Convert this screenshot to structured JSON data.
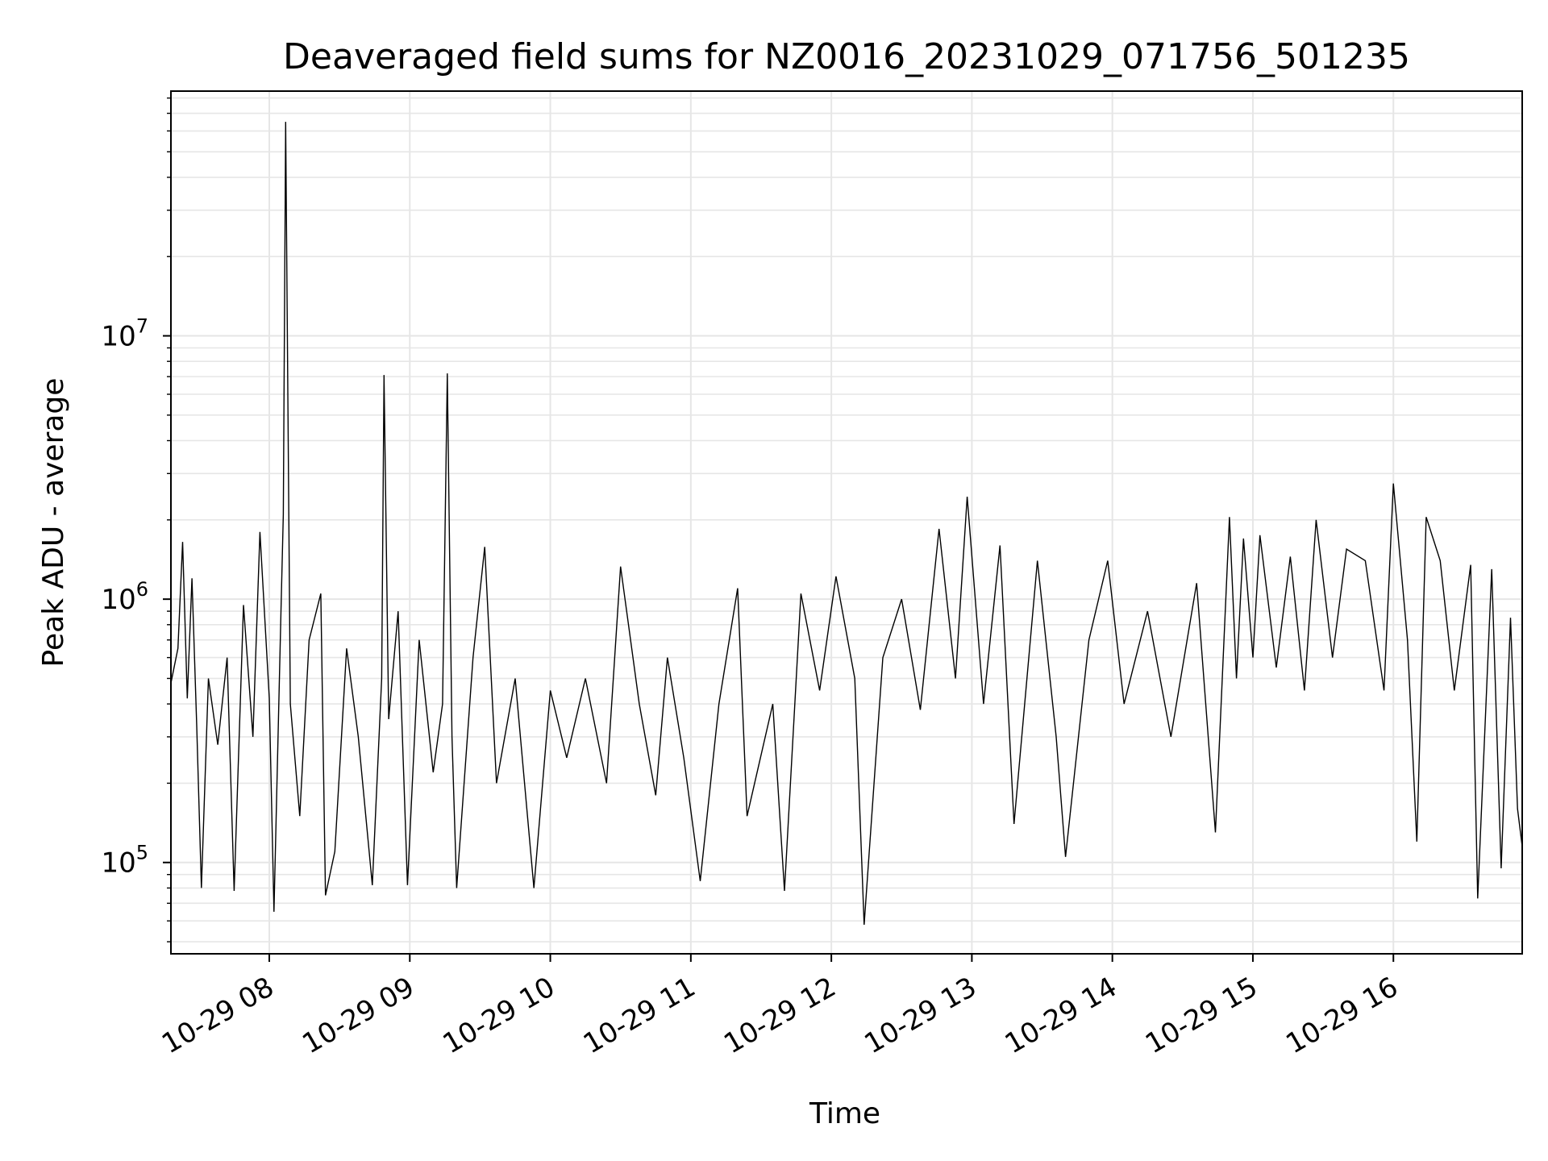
{
  "chart_data": {
    "type": "line",
    "title": "Deaveraged field sums for NZ0016_20231029_071756_501235",
    "xlabel": "Time",
    "ylabel": "Peak ADU - average",
    "yscale": "log",
    "xlim": [
      "2023-10-29 07:18",
      "2023-10-29 16:55"
    ],
    "ylim": [
      45000,
      85000000
    ],
    "x_ticks": [
      "2023-10-29 08:00",
      "2023-10-29 09:00",
      "2023-10-29 10:00",
      "2023-10-29 11:00",
      "2023-10-29 12:00",
      "2023-10-29 13:00",
      "2023-10-29 14:00",
      "2023-10-29 15:00",
      "2023-10-29 16:00"
    ],
    "x_tick_labels": [
      "10-29 08",
      "10-29 09",
      "10-29 10",
      "10-29 11",
      "10-29 12",
      "10-29 13",
      "10-29 14",
      "10-29 15",
      "10-29 16"
    ],
    "y_ticks": [
      100000,
      1000000,
      10000000
    ],
    "y_tick_labels": [
      {
        "base": "10",
        "exp": "5"
      },
      {
        "base": "10",
        "exp": "6"
      },
      {
        "base": "10",
        "exp": "7"
      }
    ],
    "grid": true,
    "line_color": "#000000",
    "grid_color": "#e6e6e6",
    "series": [
      {
        "values": [
          [
            "2023-10-29 07:18",
            480000
          ],
          [
            "2023-10-29 07:21",
            650000
          ],
          [
            "2023-10-29 07:23",
            1650000
          ],
          [
            "2023-10-29 07:25",
            420000
          ],
          [
            "2023-10-29 07:27",
            1200000
          ],
          [
            "2023-10-29 07:29",
            330000
          ],
          [
            "2023-10-29 07:31",
            80000
          ],
          [
            "2023-10-29 07:34",
            500000
          ],
          [
            "2023-10-29 07:38",
            280000
          ],
          [
            "2023-10-29 07:42",
            600000
          ],
          [
            "2023-10-29 07:45",
            78000
          ],
          [
            "2023-10-29 07:49",
            950000
          ],
          [
            "2023-10-29 07:53",
            300000
          ],
          [
            "2023-10-29 07:56",
            1800000
          ],
          [
            "2023-10-29 08:00",
            420000
          ],
          [
            "2023-10-29 08:02",
            65000
          ],
          [
            "2023-10-29 08:05",
            900000
          ],
          [
            "2023-10-29 08:06",
            2100000
          ],
          [
            "2023-10-29 08:07",
            65000000
          ],
          [
            "2023-10-29 08:09",
            400000
          ],
          [
            "2023-10-29 08:13",
            150000
          ],
          [
            "2023-10-29 08:17",
            700000
          ],
          [
            "2023-10-29 08:22",
            1050000
          ],
          [
            "2023-10-29 08:24",
            75000
          ],
          [
            "2023-10-29 08:28",
            110000
          ],
          [
            "2023-10-29 08:33",
            650000
          ],
          [
            "2023-10-29 08:38",
            300000
          ],
          [
            "2023-10-29 08:44",
            82000
          ],
          [
            "2023-10-29 08:48",
            500000
          ],
          [
            "2023-10-29 08:49",
            7100000
          ],
          [
            "2023-10-29 08:51",
            350000
          ],
          [
            "2023-10-29 08:55",
            900000
          ],
          [
            "2023-10-29 08:59",
            82000
          ],
          [
            "2023-10-29 09:04",
            700000
          ],
          [
            "2023-10-29 09:10",
            220000
          ],
          [
            "2023-10-29 09:14",
            400000
          ],
          [
            "2023-10-29 09:16",
            7200000
          ],
          [
            "2023-10-29 09:18",
            300000
          ],
          [
            "2023-10-29 09:20",
            80000
          ],
          [
            "2023-10-29 09:27",
            600000
          ],
          [
            "2023-10-29 09:32",
            1580000
          ],
          [
            "2023-10-29 09:37",
            200000
          ],
          [
            "2023-10-29 09:45",
            500000
          ],
          [
            "2023-10-29 09:53",
            80000
          ],
          [
            "2023-10-29 10:00",
            450000
          ],
          [
            "2023-10-29 10:07",
            250000
          ],
          [
            "2023-10-29 10:15",
            500000
          ],
          [
            "2023-10-29 10:24",
            200000
          ],
          [
            "2023-10-29 10:30",
            1330000
          ],
          [
            "2023-10-29 10:38",
            400000
          ],
          [
            "2023-10-29 10:45",
            180000
          ],
          [
            "2023-10-29 10:50",
            600000
          ],
          [
            "2023-10-29 10:57",
            250000
          ],
          [
            "2023-10-29 11:04",
            85000
          ],
          [
            "2023-10-29 11:12",
            400000
          ],
          [
            "2023-10-29 11:20",
            1100000
          ],
          [
            "2023-10-29 11:24",
            150000
          ],
          [
            "2023-10-29 11:35",
            400000
          ],
          [
            "2023-10-29 11:40",
            78000
          ],
          [
            "2023-10-29 11:47",
            1050000
          ],
          [
            "2023-10-29 11:55",
            450000
          ],
          [
            "2023-10-29 12:02",
            1220000
          ],
          [
            "2023-10-29 12:10",
            500000
          ],
          [
            "2023-10-29 12:14",
            58000
          ],
          [
            "2023-10-29 12:22",
            600000
          ],
          [
            "2023-10-29 12:30",
            1000000
          ],
          [
            "2023-10-29 12:38",
            380000
          ],
          [
            "2023-10-29 12:46",
            1850000
          ],
          [
            "2023-10-29 12:53",
            500000
          ],
          [
            "2023-10-29 12:58",
            2450000
          ],
          [
            "2023-10-29 13:05",
            400000
          ],
          [
            "2023-10-29 13:12",
            1600000
          ],
          [
            "2023-10-29 13:18",
            140000
          ],
          [
            "2023-10-29 13:28",
            1400000
          ],
          [
            "2023-10-29 13:36",
            300000
          ],
          [
            "2023-10-29 13:40",
            105000
          ],
          [
            "2023-10-29 13:50",
            700000
          ],
          [
            "2023-10-29 13:58",
            1400000
          ],
          [
            "2023-10-29 14:05",
            400000
          ],
          [
            "2023-10-29 14:15",
            900000
          ],
          [
            "2023-10-29 14:25",
            300000
          ],
          [
            "2023-10-29 14:36",
            1150000
          ],
          [
            "2023-10-29 14:44",
            130000
          ],
          [
            "2023-10-29 14:50",
            2050000
          ],
          [
            "2023-10-29 14:53",
            500000
          ],
          [
            "2023-10-29 14:56",
            1700000
          ],
          [
            "2023-10-29 15:00",
            600000
          ],
          [
            "2023-10-29 15:03",
            1750000
          ],
          [
            "2023-10-29 15:10",
            550000
          ],
          [
            "2023-10-29 15:16",
            1450000
          ],
          [
            "2023-10-29 15:22",
            450000
          ],
          [
            "2023-10-29 15:27",
            2000000
          ],
          [
            "2023-10-29 15:34",
            600000
          ],
          [
            "2023-10-29 15:40",
            1550000
          ],
          [
            "2023-10-29 15:48",
            1400000
          ],
          [
            "2023-10-29 15:56",
            450000
          ],
          [
            "2023-10-29 16:00",
            2750000
          ],
          [
            "2023-10-29 16:06",
            700000
          ],
          [
            "2023-10-29 16:10",
            120000
          ],
          [
            "2023-10-29 16:14",
            2050000
          ],
          [
            "2023-10-29 16:20",
            1400000
          ],
          [
            "2023-10-29 16:26",
            450000
          ],
          [
            "2023-10-29 16:33",
            1350000
          ],
          [
            "2023-10-29 16:36",
            73000
          ],
          [
            "2023-10-29 16:42",
            1300000
          ],
          [
            "2023-10-29 16:46",
            95000
          ],
          [
            "2023-10-29 16:50",
            850000
          ],
          [
            "2023-10-29 16:53",
            160000
          ],
          [
            "2023-10-29 16:55",
            115000
          ]
        ]
      }
    ]
  }
}
